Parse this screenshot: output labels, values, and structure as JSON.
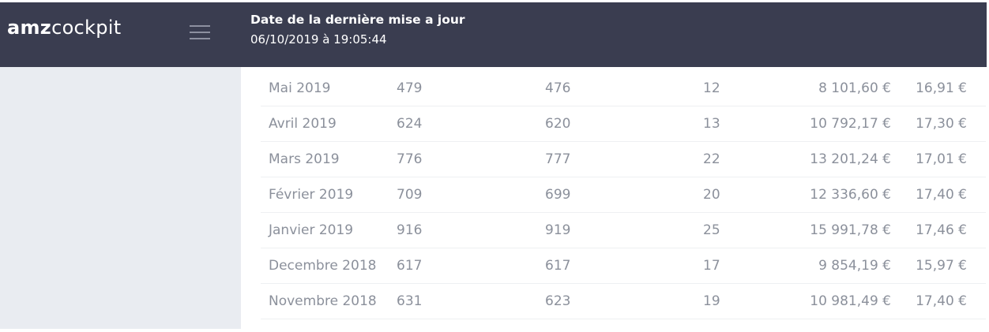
{
  "header": {
    "logo": {
      "bold": "amz",
      "regular": "cockpit"
    },
    "title": "Date de la dernière mise a jour",
    "date": "06/10/2019 à 19:05:44"
  },
  "table": {
    "rows": [
      [
        "Mai 2019",
        479,
        476,
        12,
        "8 101,60 €",
        "16,91 €"
      ],
      [
        "Avril 2019",
        624,
        620,
        13,
        "10 792,17 €",
        "17,30 €"
      ],
      [
        "Mars 2019",
        776,
        777,
        22,
        "13 201,24 €",
        "17,01 €"
      ],
      [
        "Février 2019",
        709,
        699,
        20,
        "12 336,60 €",
        "17,40 €"
      ],
      [
        "Janvier 2019",
        916,
        919,
        25,
        "15 991,78 €",
        "17,46 €"
      ],
      [
        "Decembre 2018",
        617,
        617,
        17,
        "9 854,19 €",
        "15,97 €"
      ],
      [
        "Novembre 2018",
        631,
        623,
        19,
        "10 981,49 €",
        "17,40 €"
      ]
    ]
  }
}
